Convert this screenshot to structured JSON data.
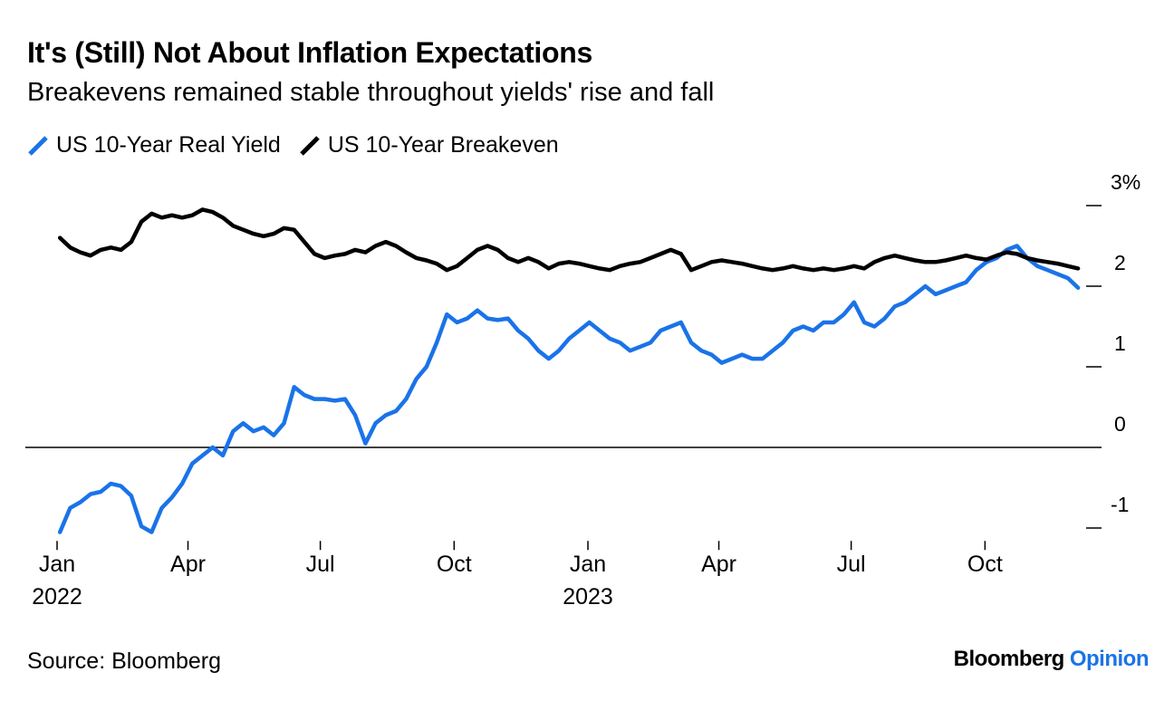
{
  "chart_data": {
    "type": "line",
    "title": "It's (Still) Not About Inflation Expectations",
    "subtitle": "Breakevens remained stable throughout yields' rise and fall",
    "y_ticks": [
      3,
      2,
      1,
      0,
      -1
    ],
    "y_tick_labels": [
      "3%",
      "2",
      "1",
      "0",
      "-1"
    ],
    "ylim": [
      -1.25,
      3.1
    ],
    "x_ticks": [
      {
        "date": "2022-01-01",
        "label": "Jan",
        "year": "2022"
      },
      {
        "date": "2022-04-01",
        "label": "Apr",
        "year": ""
      },
      {
        "date": "2022-07-01",
        "label": "Jul",
        "year": ""
      },
      {
        "date": "2022-10-01",
        "label": "Oct",
        "year": ""
      },
      {
        "date": "2023-01-01",
        "label": "Jan",
        "year": "2023"
      },
      {
        "date": "2023-04-01",
        "label": "Apr",
        "year": ""
      },
      {
        "date": "2023-07-01",
        "label": "Jul",
        "year": ""
      },
      {
        "date": "2023-10-01",
        "label": "Oct",
        "year": ""
      }
    ],
    "legend_placement": "top-left",
    "grid": false,
    "series": [
      {
        "name": "US 10-Year Real Yield",
        "color": "#1a73e8",
        "points": [
          [
            "2022-01-03",
            -1.05
          ],
          [
            "2022-01-10",
            -0.75
          ],
          [
            "2022-01-17",
            -0.68
          ],
          [
            "2022-01-24",
            -0.58
          ],
          [
            "2022-01-31",
            -0.55
          ],
          [
            "2022-02-07",
            -0.45
          ],
          [
            "2022-02-14",
            -0.48
          ],
          [
            "2022-02-21",
            -0.6
          ],
          [
            "2022-02-28",
            -0.98
          ],
          [
            "2022-03-07",
            -1.05
          ],
          [
            "2022-03-14",
            -0.75
          ],
          [
            "2022-03-21",
            -0.62
          ],
          [
            "2022-03-28",
            -0.45
          ],
          [
            "2022-04-04",
            -0.2
          ],
          [
            "2022-04-11",
            -0.1
          ],
          [
            "2022-04-18",
            0.0
          ],
          [
            "2022-04-25",
            -0.1
          ],
          [
            "2022-05-02",
            0.2
          ],
          [
            "2022-05-09",
            0.3
          ],
          [
            "2022-05-16",
            0.2
          ],
          [
            "2022-05-23",
            0.25
          ],
          [
            "2022-05-30",
            0.15
          ],
          [
            "2022-06-06",
            0.3
          ],
          [
            "2022-06-13",
            0.75
          ],
          [
            "2022-06-20",
            0.65
          ],
          [
            "2022-06-27",
            0.6
          ],
          [
            "2022-07-04",
            0.6
          ],
          [
            "2022-07-11",
            0.58
          ],
          [
            "2022-07-18",
            0.6
          ],
          [
            "2022-07-25",
            0.4
          ],
          [
            "2022-08-01",
            0.05
          ],
          [
            "2022-08-08",
            0.3
          ],
          [
            "2022-08-15",
            0.4
          ],
          [
            "2022-08-22",
            0.45
          ],
          [
            "2022-08-29",
            0.6
          ],
          [
            "2022-09-05",
            0.85
          ],
          [
            "2022-09-12",
            1.0
          ],
          [
            "2022-09-19",
            1.3
          ],
          [
            "2022-09-26",
            1.65
          ],
          [
            "2022-10-03",
            1.55
          ],
          [
            "2022-10-10",
            1.6
          ],
          [
            "2022-10-17",
            1.7
          ],
          [
            "2022-10-24",
            1.6
          ],
          [
            "2022-10-31",
            1.58
          ],
          [
            "2022-11-07",
            1.6
          ],
          [
            "2022-11-14",
            1.45
          ],
          [
            "2022-11-21",
            1.35
          ],
          [
            "2022-11-28",
            1.2
          ],
          [
            "2022-12-05",
            1.1
          ],
          [
            "2022-12-12",
            1.2
          ],
          [
            "2022-12-19",
            1.35
          ],
          [
            "2022-12-26",
            1.45
          ],
          [
            "2023-01-02",
            1.55
          ],
          [
            "2023-01-09",
            1.45
          ],
          [
            "2023-01-16",
            1.35
          ],
          [
            "2023-01-23",
            1.3
          ],
          [
            "2023-01-30",
            1.2
          ],
          [
            "2023-02-06",
            1.25
          ],
          [
            "2023-02-13",
            1.3
          ],
          [
            "2023-02-20",
            1.45
          ],
          [
            "2023-02-27",
            1.5
          ],
          [
            "2023-03-06",
            1.55
          ],
          [
            "2023-03-13",
            1.3
          ],
          [
            "2023-03-20",
            1.2
          ],
          [
            "2023-03-27",
            1.15
          ],
          [
            "2023-04-03",
            1.05
          ],
          [
            "2023-04-10",
            1.1
          ],
          [
            "2023-04-17",
            1.15
          ],
          [
            "2023-04-24",
            1.1
          ],
          [
            "2023-05-01",
            1.1
          ],
          [
            "2023-05-08",
            1.2
          ],
          [
            "2023-05-15",
            1.3
          ],
          [
            "2023-05-22",
            1.45
          ],
          [
            "2023-05-29",
            1.5
          ],
          [
            "2023-06-05",
            1.45
          ],
          [
            "2023-06-12",
            1.55
          ],
          [
            "2023-06-19",
            1.55
          ],
          [
            "2023-06-26",
            1.65
          ],
          [
            "2023-07-03",
            1.8
          ],
          [
            "2023-07-10",
            1.55
          ],
          [
            "2023-07-17",
            1.5
          ],
          [
            "2023-07-24",
            1.6
          ],
          [
            "2023-07-31",
            1.75
          ],
          [
            "2023-08-07",
            1.8
          ],
          [
            "2023-08-14",
            1.9
          ],
          [
            "2023-08-21",
            2.0
          ],
          [
            "2023-08-28",
            1.9
          ],
          [
            "2023-09-04",
            1.95
          ],
          [
            "2023-09-11",
            2.0
          ],
          [
            "2023-09-18",
            2.05
          ],
          [
            "2023-09-25",
            2.2
          ],
          [
            "2023-10-02",
            2.3
          ],
          [
            "2023-10-09",
            2.35
          ],
          [
            "2023-10-16",
            2.45
          ],
          [
            "2023-10-23",
            2.5
          ],
          [
            "2023-10-30",
            2.35
          ],
          [
            "2023-11-06",
            2.25
          ],
          [
            "2023-11-13",
            2.2
          ],
          [
            "2023-11-20",
            2.15
          ],
          [
            "2023-11-27",
            2.1
          ],
          [
            "2023-12-04",
            1.98
          ]
        ]
      },
      {
        "name": "US 10-Year Breakeven",
        "color": "#000000",
        "points": [
          [
            "2022-01-03",
            2.6
          ],
          [
            "2022-01-10",
            2.48
          ],
          [
            "2022-01-17",
            2.42
          ],
          [
            "2022-01-24",
            2.38
          ],
          [
            "2022-01-31",
            2.45
          ],
          [
            "2022-02-07",
            2.48
          ],
          [
            "2022-02-14",
            2.45
          ],
          [
            "2022-02-21",
            2.55
          ],
          [
            "2022-02-28",
            2.8
          ],
          [
            "2022-03-07",
            2.9
          ],
          [
            "2022-03-14",
            2.85
          ],
          [
            "2022-03-21",
            2.88
          ],
          [
            "2022-03-28",
            2.85
          ],
          [
            "2022-04-04",
            2.88
          ],
          [
            "2022-04-11",
            2.95
          ],
          [
            "2022-04-18",
            2.92
          ],
          [
            "2022-04-25",
            2.85
          ],
          [
            "2022-05-02",
            2.75
          ],
          [
            "2022-05-09",
            2.7
          ],
          [
            "2022-05-16",
            2.65
          ],
          [
            "2022-05-23",
            2.62
          ],
          [
            "2022-05-30",
            2.65
          ],
          [
            "2022-06-06",
            2.72
          ],
          [
            "2022-06-13",
            2.7
          ],
          [
            "2022-06-20",
            2.55
          ],
          [
            "2022-06-27",
            2.4
          ],
          [
            "2022-07-04",
            2.35
          ],
          [
            "2022-07-11",
            2.38
          ],
          [
            "2022-07-18",
            2.4
          ],
          [
            "2022-07-25",
            2.45
          ],
          [
            "2022-08-01",
            2.42
          ],
          [
            "2022-08-08",
            2.5
          ],
          [
            "2022-08-15",
            2.55
          ],
          [
            "2022-08-22",
            2.5
          ],
          [
            "2022-08-29",
            2.42
          ],
          [
            "2022-09-05",
            2.35
          ],
          [
            "2022-09-12",
            2.32
          ],
          [
            "2022-09-19",
            2.28
          ],
          [
            "2022-09-26",
            2.2
          ],
          [
            "2022-10-03",
            2.25
          ],
          [
            "2022-10-10",
            2.35
          ],
          [
            "2022-10-17",
            2.45
          ],
          [
            "2022-10-24",
            2.5
          ],
          [
            "2022-10-31",
            2.45
          ],
          [
            "2022-11-07",
            2.35
          ],
          [
            "2022-11-14",
            2.3
          ],
          [
            "2022-11-21",
            2.35
          ],
          [
            "2022-11-28",
            2.3
          ],
          [
            "2022-12-05",
            2.22
          ],
          [
            "2022-12-12",
            2.28
          ],
          [
            "2022-12-19",
            2.3
          ],
          [
            "2022-12-26",
            2.28
          ],
          [
            "2023-01-02",
            2.25
          ],
          [
            "2023-01-09",
            2.22
          ],
          [
            "2023-01-16",
            2.2
          ],
          [
            "2023-01-23",
            2.25
          ],
          [
            "2023-01-30",
            2.28
          ],
          [
            "2023-02-06",
            2.3
          ],
          [
            "2023-02-13",
            2.35
          ],
          [
            "2023-02-20",
            2.4
          ],
          [
            "2023-02-27",
            2.45
          ],
          [
            "2023-03-06",
            2.4
          ],
          [
            "2023-03-13",
            2.2
          ],
          [
            "2023-03-20",
            2.25
          ],
          [
            "2023-03-27",
            2.3
          ],
          [
            "2023-04-03",
            2.32
          ],
          [
            "2023-04-10",
            2.3
          ],
          [
            "2023-04-17",
            2.28
          ],
          [
            "2023-04-24",
            2.25
          ],
          [
            "2023-05-01",
            2.22
          ],
          [
            "2023-05-08",
            2.2
          ],
          [
            "2023-05-15",
            2.22
          ],
          [
            "2023-05-22",
            2.25
          ],
          [
            "2023-05-29",
            2.22
          ],
          [
            "2023-06-05",
            2.2
          ],
          [
            "2023-06-12",
            2.22
          ],
          [
            "2023-06-19",
            2.2
          ],
          [
            "2023-06-26",
            2.22
          ],
          [
            "2023-07-03",
            2.25
          ],
          [
            "2023-07-10",
            2.22
          ],
          [
            "2023-07-17",
            2.3
          ],
          [
            "2023-07-24",
            2.35
          ],
          [
            "2023-07-31",
            2.38
          ],
          [
            "2023-08-07",
            2.35
          ],
          [
            "2023-08-14",
            2.32
          ],
          [
            "2023-08-21",
            2.3
          ],
          [
            "2023-08-28",
            2.3
          ],
          [
            "2023-09-04",
            2.32
          ],
          [
            "2023-09-11",
            2.35
          ],
          [
            "2023-09-18",
            2.38
          ],
          [
            "2023-09-25",
            2.35
          ],
          [
            "2023-10-02",
            2.33
          ],
          [
            "2023-10-09",
            2.38
          ],
          [
            "2023-10-16",
            2.42
          ],
          [
            "2023-10-23",
            2.4
          ],
          [
            "2023-10-30",
            2.35
          ],
          [
            "2023-11-06",
            2.32
          ],
          [
            "2023-11-13",
            2.3
          ],
          [
            "2023-11-20",
            2.28
          ],
          [
            "2023-11-27",
            2.25
          ],
          [
            "2023-12-04",
            2.22
          ]
        ]
      }
    ]
  },
  "footer": {
    "source": "Source: Bloomberg",
    "brand_name": "Bloomberg",
    "brand_section": "Opinion"
  }
}
